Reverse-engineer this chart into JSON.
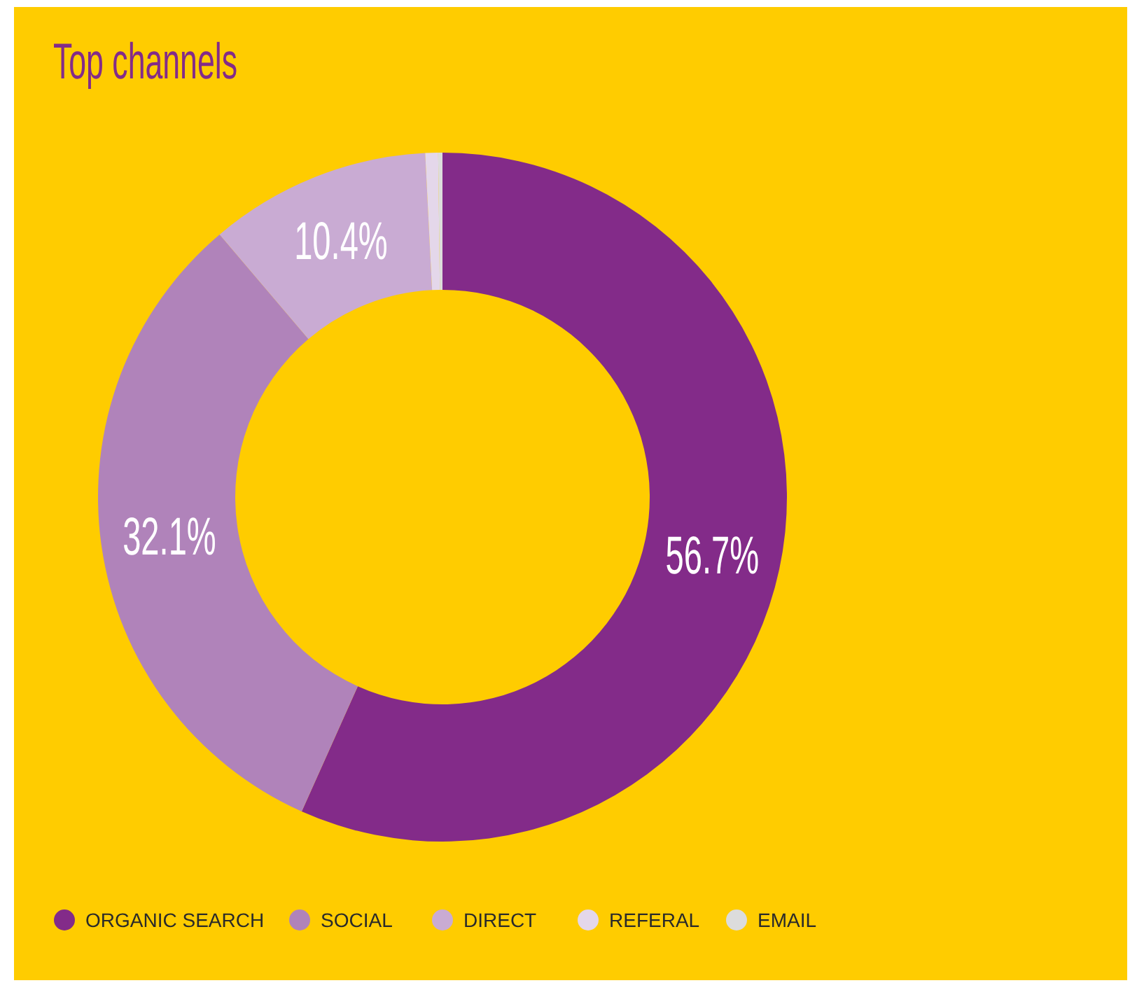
{
  "chart_data": {
    "type": "donut",
    "title": "Top channels",
    "categories": [
      "ORGANIC SEARCH",
      "SOCIAL",
      "DIRECT",
      "REFERAL",
      "EMAIL"
    ],
    "values": [
      56.7,
      32.1,
      10.4,
      0.6,
      0.2
    ],
    "colors": [
      "#832b89",
      "#b083ba",
      "#c9abd3",
      "#e4d7ea",
      "#dcdcdc"
    ],
    "value_labels": [
      "56.7%",
      "32.1%",
      "10.4%",
      null,
      null
    ],
    "legend": "bottom"
  }
}
